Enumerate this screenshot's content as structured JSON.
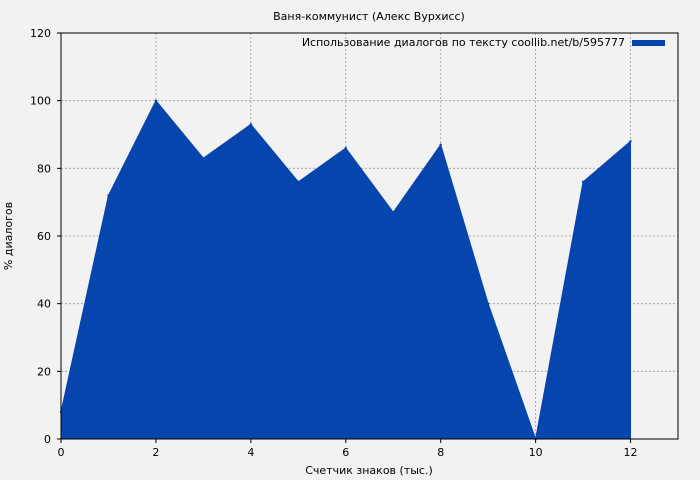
{
  "chart_data": {
    "type": "area",
    "title": "Ваня-коммунист (Алекс Вурхисс)",
    "xlabel": "Счетчик знаков (тыс.)",
    "ylabel": "% диалогов",
    "xlim": [
      0,
      13
    ],
    "ylim": [
      0,
      120
    ],
    "xticks": [
      0,
      2,
      4,
      6,
      8,
      10,
      12
    ],
    "yticks": [
      0,
      20,
      40,
      60,
      80,
      100,
      120
    ],
    "grid": true,
    "legend_position": "top-right",
    "series": [
      {
        "name": "Использование диалогов по тексту coollib.net/b/595777",
        "color": "#0645ad",
        "x": [
          0,
          1,
          2,
          3,
          4,
          5,
          6,
          7,
          8,
          9,
          10,
          11,
          12
        ],
        "values": [
          8,
          72,
          100,
          83,
          93,
          76,
          86,
          67,
          87,
          40,
          0,
          76,
          88
        ]
      }
    ]
  }
}
